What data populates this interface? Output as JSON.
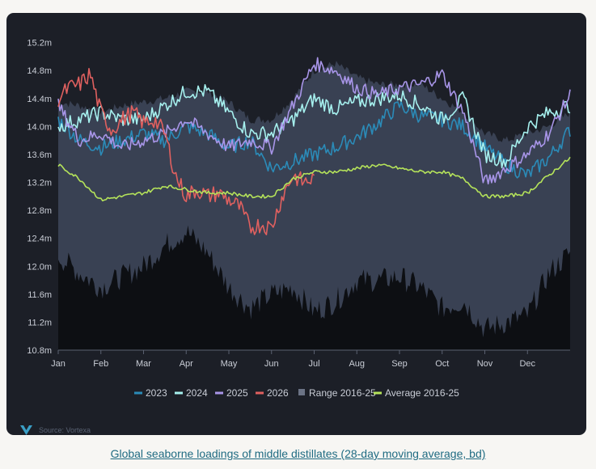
{
  "caption": "Global seaborne loadings of middle distillates (28-day moving average, bd)",
  "source": "Source: Vortexa",
  "colors": {
    "background": "#1c1f27",
    "range_fill": "#3b4355",
    "dark_fill": "#0d0f13",
    "2023": "#2b8bb8",
    "2024": "#a6f0ee",
    "2025": "#a895e8",
    "2026": "#e0605f",
    "average": "#b5e35a"
  },
  "chart_data": {
    "type": "line",
    "title": "",
    "xlabel": "",
    "ylabel": "",
    "x_ticks": [
      "Jan",
      "Feb",
      "Mar",
      "Apr",
      "May",
      "Jun",
      "Jul",
      "Aug",
      "Sep",
      "Oct",
      "Nov",
      "Dec"
    ],
    "y_ticks": [
      "10.8m",
      "11.2m",
      "11.6m",
      "12.0m",
      "12.4m",
      "12.8m",
      "13.2m",
      "13.6m",
      "14.0m",
      "14.4m",
      "14.8m",
      "15.2m"
    ],
    "ylim": [
      10.8,
      15.3
    ],
    "x_unit": "month",
    "legend_position": "bottom",
    "range": {
      "name": "Range 2016-25",
      "x": [
        0,
        0.5,
        1,
        1.5,
        2,
        2.5,
        3,
        3.5,
        4,
        4.5,
        5,
        5.5,
        6,
        6.5,
        7,
        7.5,
        8,
        8.5,
        9,
        9.5,
        10,
        10.5,
        11,
        11.5,
        12
      ],
      "upper": [
        14.35,
        14.3,
        14.2,
        14.3,
        14.35,
        14.4,
        14.5,
        14.5,
        14.35,
        14.1,
        14.1,
        14.4,
        14.8,
        14.9,
        14.7,
        14.6,
        14.6,
        14.6,
        14.4,
        14.2,
        13.9,
        13.8,
        13.9,
        14.0,
        14.2
      ],
      "lower": [
        12.15,
        11.9,
        11.7,
        11.85,
        12.0,
        12.3,
        12.5,
        12.2,
        11.7,
        11.4,
        11.6,
        11.7,
        11.35,
        11.5,
        11.8,
        11.8,
        11.85,
        11.7,
        11.4,
        11.5,
        11.1,
        11.2,
        11.3,
        11.9,
        12.2
      ]
    },
    "series": [
      {
        "name": "2023",
        "x": [
          0,
          0.5,
          1,
          1.5,
          2,
          2.5,
          3,
          3.5,
          4,
          4.5,
          5,
          5.5,
          6,
          6.5,
          7,
          7.5,
          8,
          8.5,
          9,
          9.5,
          10,
          10.5,
          11,
          11.5,
          12
        ],
        "y": [
          14.1,
          13.8,
          13.7,
          13.8,
          13.9,
          13.8,
          14.0,
          13.9,
          13.7,
          13.8,
          13.4,
          13.5,
          13.6,
          13.7,
          13.85,
          14.05,
          14.3,
          14.15,
          14.1,
          14.0,
          13.7,
          13.45,
          13.3,
          13.55,
          13.95
        ]
      },
      {
        "name": "2024",
        "x": [
          0,
          0.5,
          1,
          1.5,
          2,
          2.5,
          3,
          3.5,
          4,
          4.5,
          5,
          5.5,
          6,
          6.5,
          7,
          7.5,
          8,
          8.5,
          9,
          9.5,
          10,
          10.5,
          11,
          11.5,
          12
        ],
        "y": [
          14.0,
          14.1,
          14.2,
          14.1,
          14.1,
          14.3,
          14.5,
          14.5,
          14.2,
          13.9,
          13.9,
          14.1,
          14.4,
          14.25,
          14.35,
          14.4,
          14.45,
          14.3,
          14.1,
          14.4,
          13.6,
          13.5,
          14.0,
          14.2,
          14.3
        ]
      },
      {
        "name": "2025",
        "x": [
          0,
          0.5,
          1,
          1.5,
          2,
          2.5,
          3,
          3.5,
          4,
          4.5,
          5,
          5.5,
          6,
          6.5,
          7,
          7.5,
          8,
          8.5,
          9,
          9.5,
          10,
          10.5,
          11,
          11.5,
          12
        ],
        "y": [
          14.3,
          13.8,
          13.9,
          13.7,
          13.8,
          13.9,
          14.1,
          13.9,
          13.7,
          13.8,
          13.7,
          14.3,
          14.9,
          14.8,
          14.55,
          14.45,
          14.55,
          14.6,
          14.75,
          14.2,
          13.2,
          13.4,
          13.6,
          13.9,
          14.45
        ]
      },
      {
        "name": "2026",
        "x": [
          0,
          0.25,
          0.5,
          0.75,
          1,
          1.25,
          1.5,
          1.75,
          2,
          2.25,
          2.5,
          2.75,
          3,
          3.25,
          3.5,
          3.75,
          4,
          4.25,
          4.5,
          4.75,
          5,
          5.25,
          5.5,
          5.75,
          6
        ],
        "y": [
          14.4,
          14.55,
          14.6,
          14.75,
          14.2,
          13.95,
          14.1,
          14.2,
          14.05,
          14.1,
          13.9,
          13.3,
          13.0,
          13.1,
          13.0,
          13.05,
          12.95,
          12.85,
          12.55,
          12.6,
          12.55,
          13.0,
          13.3,
          13.2,
          13.25
        ]
      },
      {
        "name": "Average 2016-25",
        "x": [
          0,
          0.5,
          1,
          1.5,
          2,
          2.5,
          3,
          3.5,
          4,
          4.5,
          5,
          5.5,
          6,
          6.5,
          7,
          7.5,
          8,
          8.5,
          9,
          9.5,
          10,
          10.5,
          11,
          11.5,
          12
        ],
        "y": [
          13.45,
          13.25,
          12.95,
          13.0,
          13.05,
          13.15,
          13.1,
          13.05,
          13.05,
          13.0,
          13.0,
          13.25,
          13.35,
          13.35,
          13.4,
          13.45,
          13.4,
          13.35,
          13.35,
          13.25,
          13.0,
          13.0,
          13.05,
          13.3,
          13.55
        ]
      }
    ],
    "legend": [
      "2023",
      "2024",
      "2025",
      "2026",
      "Range 2016-25",
      "Average 2016-25"
    ]
  }
}
